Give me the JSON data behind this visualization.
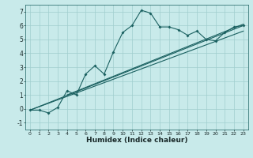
{
  "title": "",
  "xlabel": "Humidex (Indice chaleur)",
  "ylabel": "",
  "background_color": "#c8eaea",
  "grid_color": "#a0cece",
  "line_color": "#1a6060",
  "xlim": [
    -0.5,
    23.5
  ],
  "ylim": [
    -1.5,
    7.5
  ],
  "xticks": [
    0,
    1,
    2,
    3,
    4,
    5,
    6,
    7,
    8,
    9,
    10,
    11,
    12,
    13,
    14,
    15,
    16,
    17,
    18,
    19,
    20,
    21,
    22,
    23
  ],
  "yticks": [
    -1,
    0,
    1,
    2,
    3,
    4,
    5,
    6,
    7
  ],
  "main_x": [
    0,
    1,
    2,
    3,
    4,
    5,
    6,
    7,
    8,
    9,
    10,
    11,
    12,
    13,
    14,
    15,
    16,
    17,
    18,
    19,
    20,
    21,
    22,
    23
  ],
  "main_y": [
    -0.1,
    -0.1,
    -0.3,
    0.1,
    1.3,
    1.0,
    2.5,
    3.1,
    2.5,
    4.1,
    5.5,
    6.0,
    7.1,
    6.9,
    5.9,
    5.9,
    5.7,
    5.3,
    5.6,
    5.0,
    4.9,
    5.5,
    5.9,
    6.0
  ],
  "ref_line1_x": [
    0,
    23
  ],
  "ref_line1_y": [
    -0.1,
    6.0
  ],
  "ref_line2_x": [
    0,
    23
  ],
  "ref_line2_y": [
    -0.1,
    5.6
  ],
  "ref_line3_x": [
    4,
    23
  ],
  "ref_line3_y": [
    1.0,
    6.1
  ]
}
